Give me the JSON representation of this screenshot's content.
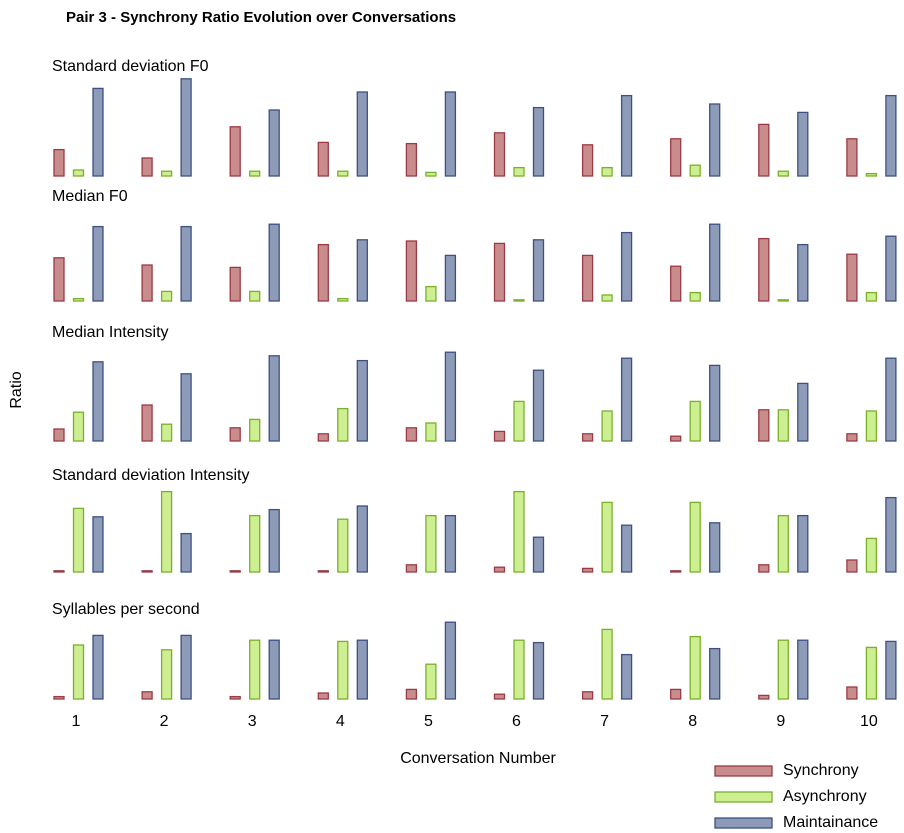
{
  "chart_data": {
    "type": "bar",
    "title": "Pair 3 - Synchrony Ratio Evolution over Conversations",
    "xlabel": "Conversation Number",
    "ylabel": "Ratio",
    "categories": [
      1,
      2,
      3,
      4,
      5,
      6,
      7,
      8,
      9,
      10
    ],
    "ylim": [
      0,
      1
    ],
    "series": [
      {
        "name": "Synchrony",
        "color": "#c98c8c",
        "edgecolor": "#9b3a44"
      },
      {
        "name": "Asynchrony",
        "color": "#cdee91",
        "edgecolor": "#7ab02c"
      },
      {
        "name": "Maintainance",
        "color": "#8e9bb8",
        "edgecolor": "#3d5080"
      }
    ],
    "panels": [
      {
        "title": "Standard deviation F0",
        "values": [
          [
            0.22,
            0.15,
            0.41,
            0.28,
            0.27,
            0.36,
            0.26,
            0.31,
            0.43,
            0.31
          ],
          [
            0.05,
            0.04,
            0.04,
            0.04,
            0.03,
            0.07,
            0.07,
            0.09,
            0.04,
            0.02
          ],
          [
            0.73,
            0.81,
            0.55,
            0.7,
            0.7,
            0.57,
            0.67,
            0.6,
            0.53,
            0.67
          ]
        ]
      },
      {
        "title": "Median F0",
        "values": [
          [
            0.36,
            0.3,
            0.28,
            0.47,
            0.5,
            0.48,
            0.38,
            0.29,
            0.52,
            0.39
          ],
          [
            0.02,
            0.08,
            0.08,
            0.02,
            0.12,
            0.01,
            0.05,
            0.07,
            0.01,
            0.07
          ],
          [
            0.62,
            0.62,
            0.64,
            0.51,
            0.38,
            0.51,
            0.57,
            0.64,
            0.47,
            0.54
          ]
        ]
      },
      {
        "title": "Median Intensity",
        "values": [
          [
            0.1,
            0.3,
            0.11,
            0.06,
            0.11,
            0.08,
            0.06,
            0.04,
            0.26,
            0.06
          ],
          [
            0.24,
            0.14,
            0.18,
            0.27,
            0.15,
            0.33,
            0.25,
            0.33,
            0.26,
            0.25
          ],
          [
            0.66,
            0.56,
            0.71,
            0.67,
            0.74,
            0.59,
            0.69,
            0.63,
            0.48,
            0.69
          ]
        ]
      },
      {
        "title": "Standard deviation Intensity",
        "values": [
          [
            0.01,
            0.01,
            0.01,
            0.01,
            0.06,
            0.04,
            0.03,
            0.01,
            0.06,
            0.1
          ],
          [
            0.53,
            0.67,
            0.47,
            0.44,
            0.47,
            0.67,
            0.58,
            0.58,
            0.47,
            0.28
          ],
          [
            0.46,
            0.32,
            0.52,
            0.55,
            0.47,
            0.29,
            0.39,
            0.41,
            0.47,
            0.62
          ]
        ]
      },
      {
        "title": "Syllables per second",
        "values": [
          [
            0.02,
            0.06,
            0.02,
            0.05,
            0.08,
            0.04,
            0.06,
            0.08,
            0.03,
            0.1
          ],
          [
            0.45,
            0.41,
            0.49,
            0.48,
            0.29,
            0.49,
            0.58,
            0.52,
            0.49,
            0.43
          ],
          [
            0.53,
            0.53,
            0.49,
            0.49,
            0.64,
            0.47,
            0.37,
            0.42,
            0.49,
            0.48
          ]
        ]
      }
    ]
  }
}
